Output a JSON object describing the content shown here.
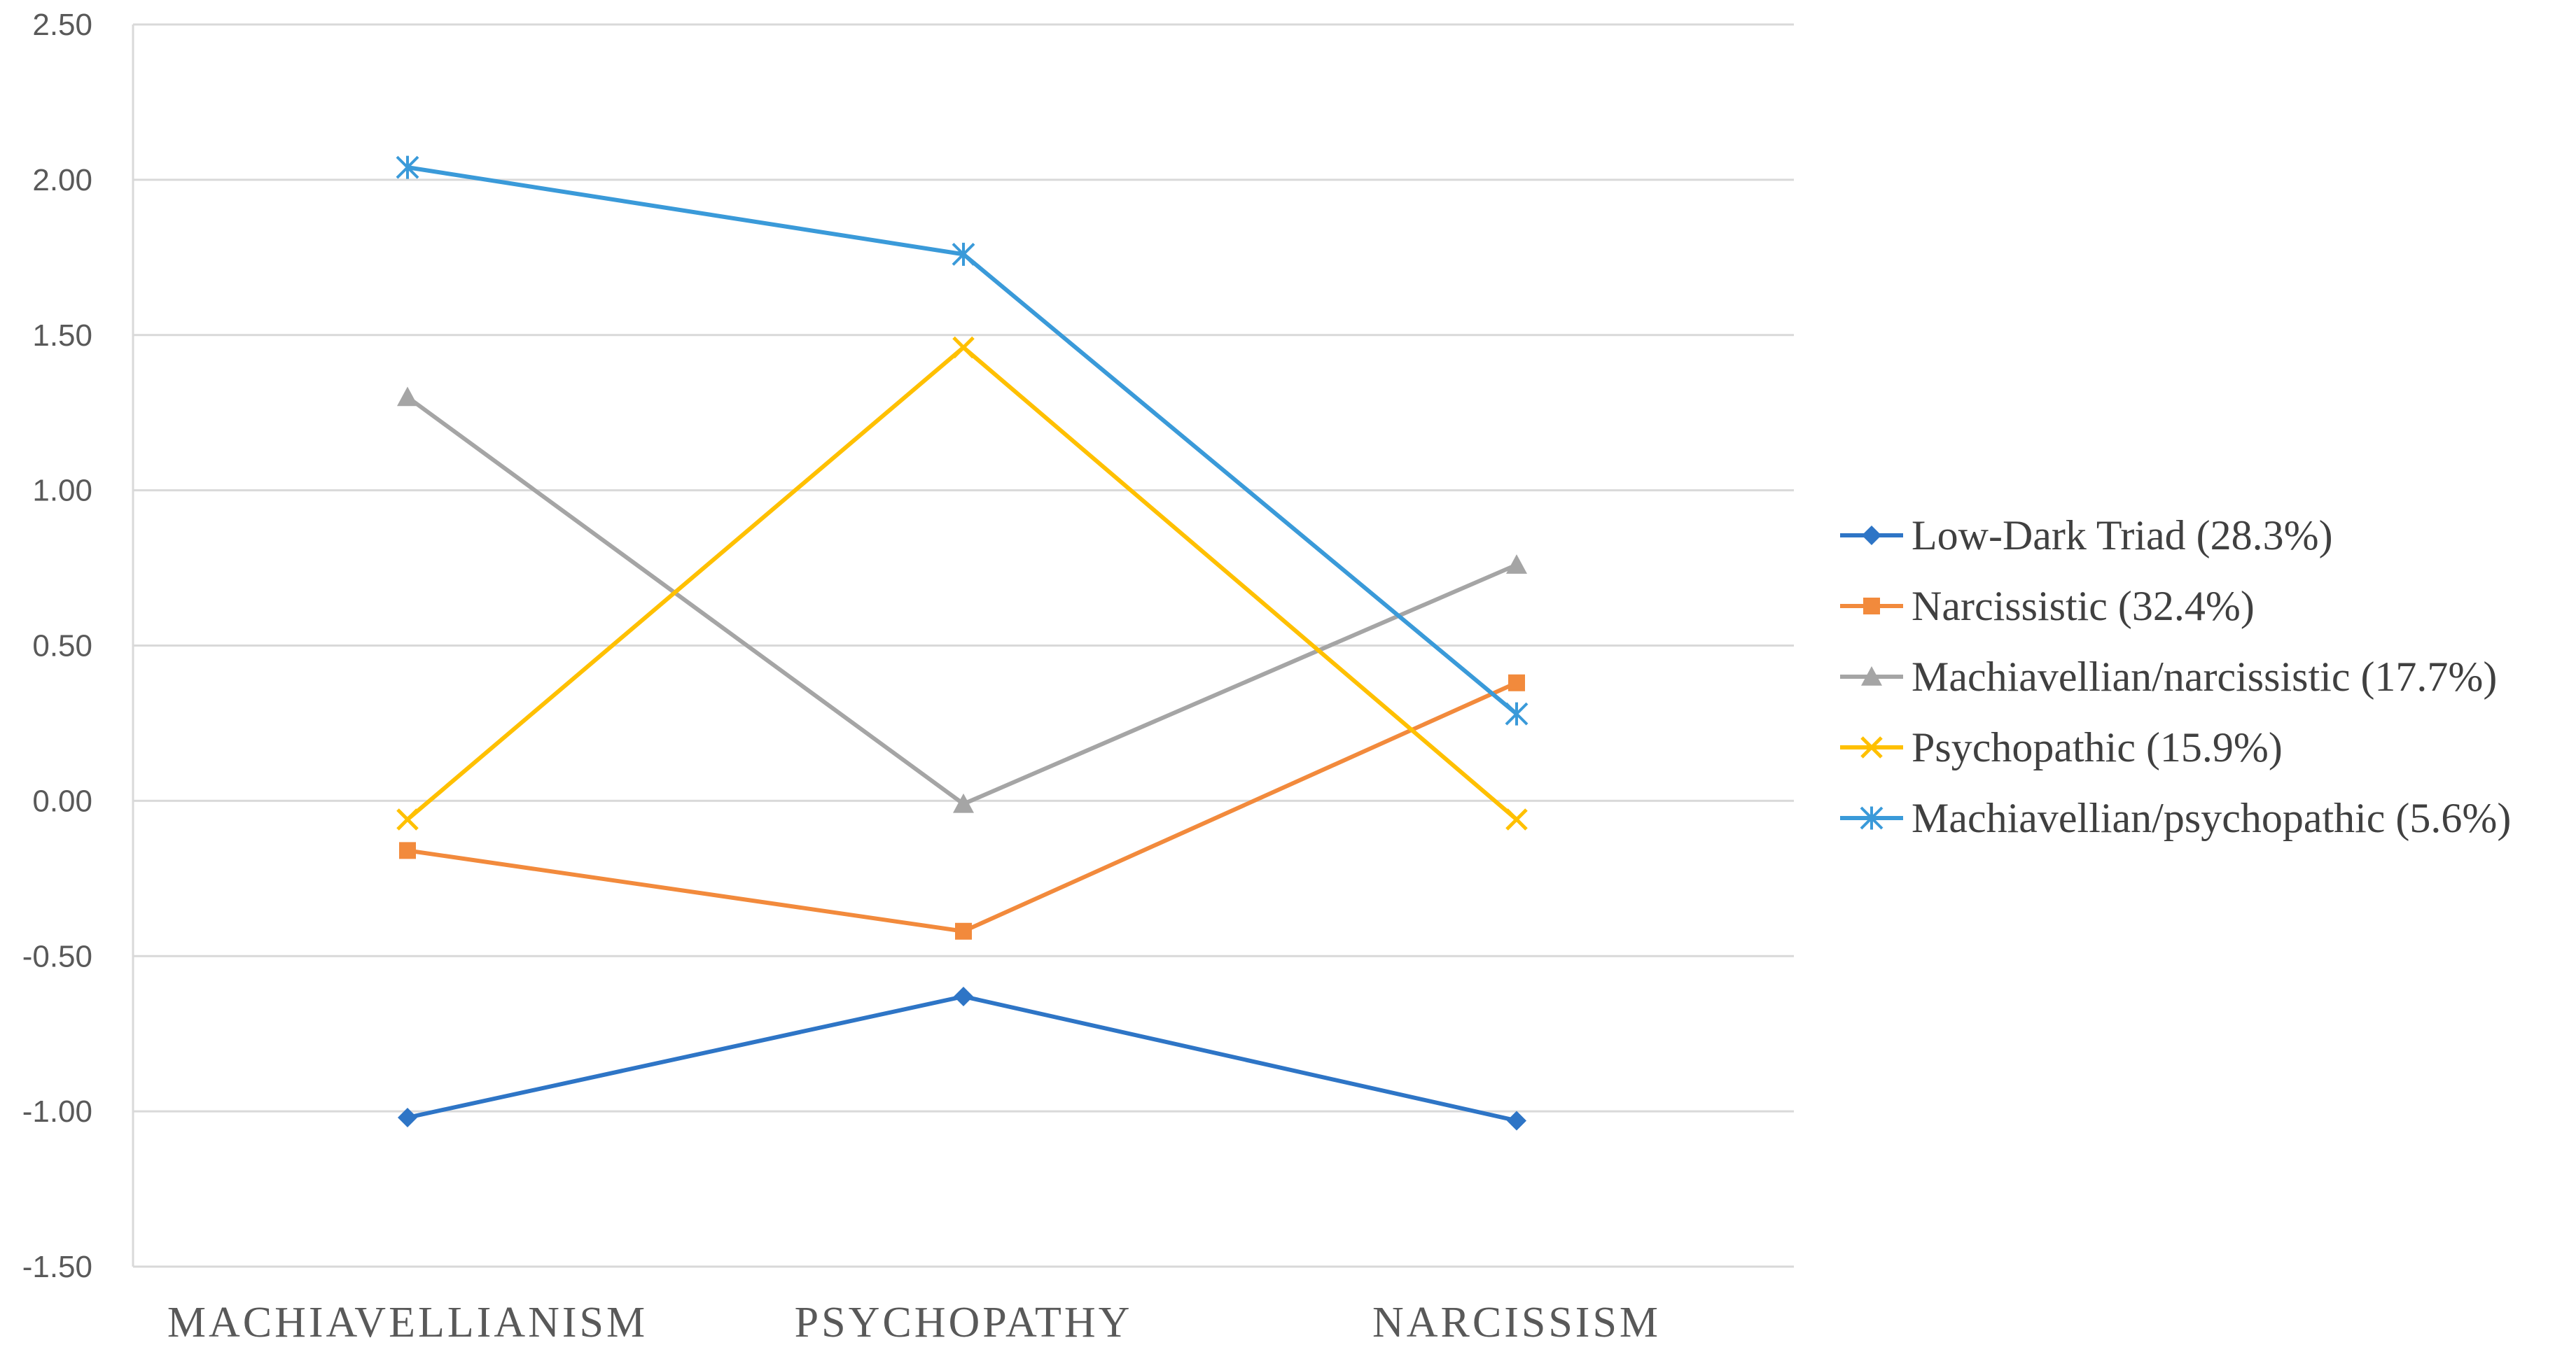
{
  "chart_data": {
    "type": "line",
    "categories": [
      "MACHIAVELLIANISM",
      "PSYCHOPATHY",
      "NARCISSISM"
    ],
    "ylim": [
      -1.5,
      2.5
    ],
    "yticks": [
      "2.50",
      "2.00",
      "1.50",
      "1.00",
      "0.50",
      "0.00",
      "-0.50",
      "-1.00",
      "-1.50"
    ],
    "ytick_values": [
      2.5,
      2.0,
      1.5,
      1.0,
      0.5,
      0.0,
      -0.5,
      -1.0,
      -1.5
    ],
    "grid": true,
    "legend_position": "right",
    "series": [
      {
        "name": "Low-Dark Triad (28.3%)",
        "values": [
          -1.02,
          -0.63,
          -1.03
        ],
        "color": "#2E75C6",
        "marker": "diamond"
      },
      {
        "name": "Narcissistic (32.4%)",
        "values": [
          -0.16,
          -0.42,
          0.38
        ],
        "color": "#F28A3C",
        "marker": "square"
      },
      {
        "name": "Machiavellian/narcissistic  (17.7%)",
        "values": [
          1.3,
          -0.01,
          0.76
        ],
        "color": "#A5A5A5",
        "marker": "triangle"
      },
      {
        "name": "Psychopathic (15.9%)",
        "values": [
          -0.06,
          1.46,
          -0.06
        ],
        "color": "#FFC000",
        "marker": "x"
      },
      {
        "name": "Machiavellian/psychopathic (5.6%)",
        "values": [
          2.04,
          1.76,
          0.28
        ],
        "color": "#3A9AD9",
        "marker": "star"
      }
    ]
  }
}
